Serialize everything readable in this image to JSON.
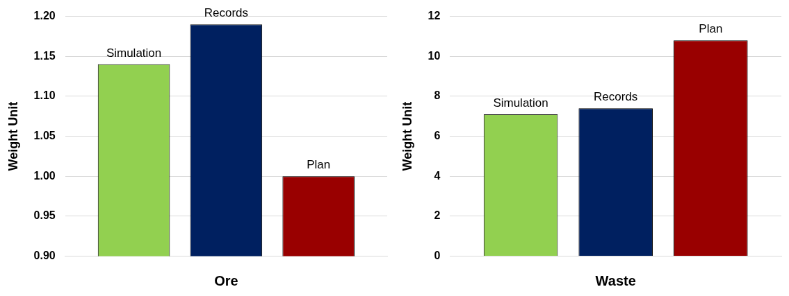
{
  "chart_data": [
    {
      "type": "bar",
      "categories": [
        null
      ],
      "xlabel": "Ore",
      "ylabel": "Weight Unit",
      "ylim": [
        0.9,
        1.2
      ],
      "yticks": [
        {
          "value": 0.9,
          "label": "0.90"
        },
        {
          "value": 0.95,
          "label": "0.95"
        },
        {
          "value": 1.0,
          "label": "1.00"
        },
        {
          "value": 1.05,
          "label": "1.05"
        },
        {
          "value": 1.1,
          "label": "1.10"
        },
        {
          "value": 1.15,
          "label": "1.15"
        },
        {
          "value": 1.2,
          "label": "1.20"
        }
      ],
      "grid": "y",
      "legend": false,
      "series": [
        {
          "name": "Simulation",
          "color": "#92d050",
          "values": [
            1.14
          ]
        },
        {
          "name": "Records",
          "color": "#002060",
          "values": [
            1.19
          ]
        },
        {
          "name": "Plan",
          "color": "#990000",
          "values": [
            1.0
          ]
        }
      ]
    },
    {
      "type": "bar",
      "categories": [
        null
      ],
      "xlabel": "Waste",
      "ylabel": "Weight Unit",
      "ylim": [
        0,
        12
      ],
      "yticks": [
        0,
        2,
        4,
        6,
        8,
        10,
        12
      ],
      "grid": "y",
      "legend": false,
      "series": [
        {
          "name": "Simulation",
          "color": "#92d050",
          "values": [
            7.1
          ]
        },
        {
          "name": "Records",
          "color": "#002060",
          "values": [
            7.4
          ]
        },
        {
          "name": "Plan",
          "color": "#990000",
          "values": [
            10.8
          ]
        }
      ]
    }
  ]
}
